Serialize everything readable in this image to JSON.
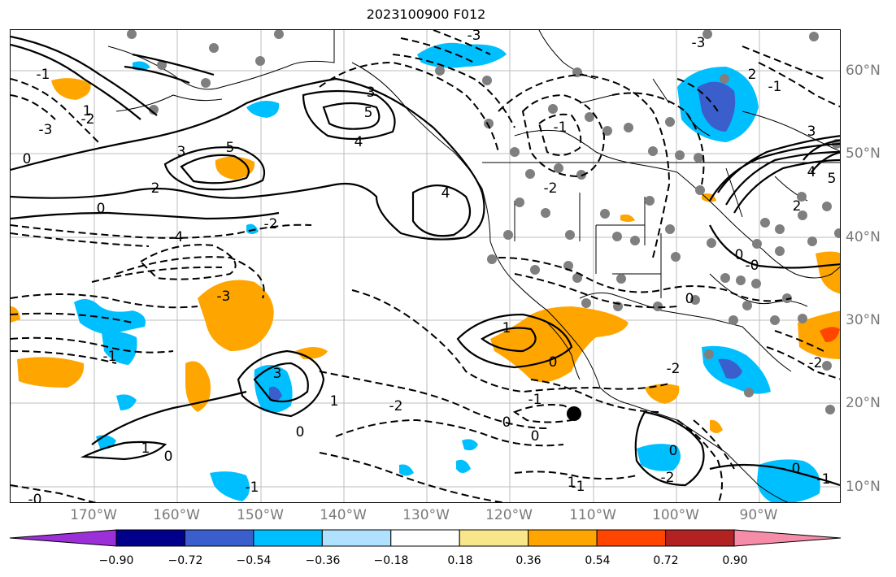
{
  "title": "2023100900 F012",
  "longitude_labels": [
    "170°W",
    "160°W",
    "150°W",
    "140°W",
    "130°W",
    "120°W",
    "110°W",
    "100°W",
    "90°W"
  ],
  "latitude_labels": [
    "60°N",
    "50°N",
    "40°N",
    "30°N",
    "20°N",
    "10°N"
  ],
  "colorbar": {
    "colors": [
      "#9b30d9",
      "#00008b",
      "#3a5fcd",
      "#00bfff",
      "#b0e2ff",
      "#ffffff",
      "#f8e68a",
      "#ffa500",
      "#ff4500",
      "#b22222",
      "#f58ca8"
    ],
    "tick_labels": [
      "−0.90",
      "−0.72",
      "−0.54",
      "−0.36",
      "−0.18",
      "0.18",
      "0.36",
      "0.54",
      "0.72",
      "0.90"
    ]
  },
  "contour_labels": {
    "positive": [
      "5",
      "5",
      "4",
      "4",
      "3",
      "3",
      "2",
      "1",
      "5",
      "4",
      "3",
      "2",
      "3",
      "1",
      "2",
      "1",
      "1",
      "1"
    ],
    "negative": [
      "-3",
      "-2",
      "-3",
      "-3",
      "-4",
      "-2",
      "-1",
      "-2",
      "-1",
      "-2",
      "-3",
      "-1",
      "-2",
      "-1",
      "-1",
      "-0",
      "-2",
      "-1",
      "-2",
      "-1",
      "-1"
    ],
    "zero": [
      "0",
      "0",
      "0",
      "0",
      "0",
      "0",
      "0",
      "0",
      "0",
      "0",
      "-0",
      "0"
    ]
  },
  "fill_colors": {
    "orange": "#ffa500",
    "light_blue": "#00bfff",
    "mid_blue": "#3a5fcd",
    "red": "#ff4500"
  }
}
